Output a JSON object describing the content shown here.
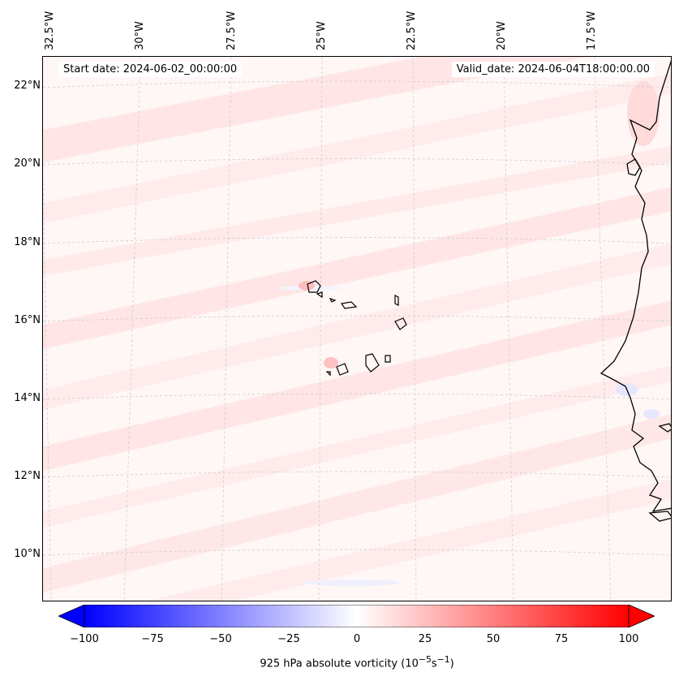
{
  "start_date": "Start date: 2024-06-02_00:00:00",
  "valid_date": "Valid_date: 2024-06-04T18:00:00.00",
  "longitude_labels": [
    "32.5°W",
    "30°W",
    "27.5°W",
    "25°W",
    "22.5°W",
    "20°W",
    "17.5°W"
  ],
  "latitude_labels": [
    "22°N",
    "20°N",
    "18°N",
    "16°N",
    "14°N",
    "12°N",
    "10°N"
  ],
  "colorbar": {
    "label_main": "925 hPa absolute vorticity (10",
    "label_exp1": "−5",
    "label_mid": "s",
    "label_exp2": "−1",
    "label_end": ")",
    "min": -100,
    "max": 100,
    "ticks": [
      "−100",
      "−75",
      "−50",
      "−25",
      "0",
      "25",
      "50",
      "75",
      "100"
    ],
    "colors": {
      "negative": "#0000ff",
      "neutral": "#ffffff",
      "positive": "#ff0000"
    }
  },
  "colors": {
    "coastline": "#000000",
    "gridline": "#c8c8c8",
    "background_field": "#fff6f6"
  }
}
